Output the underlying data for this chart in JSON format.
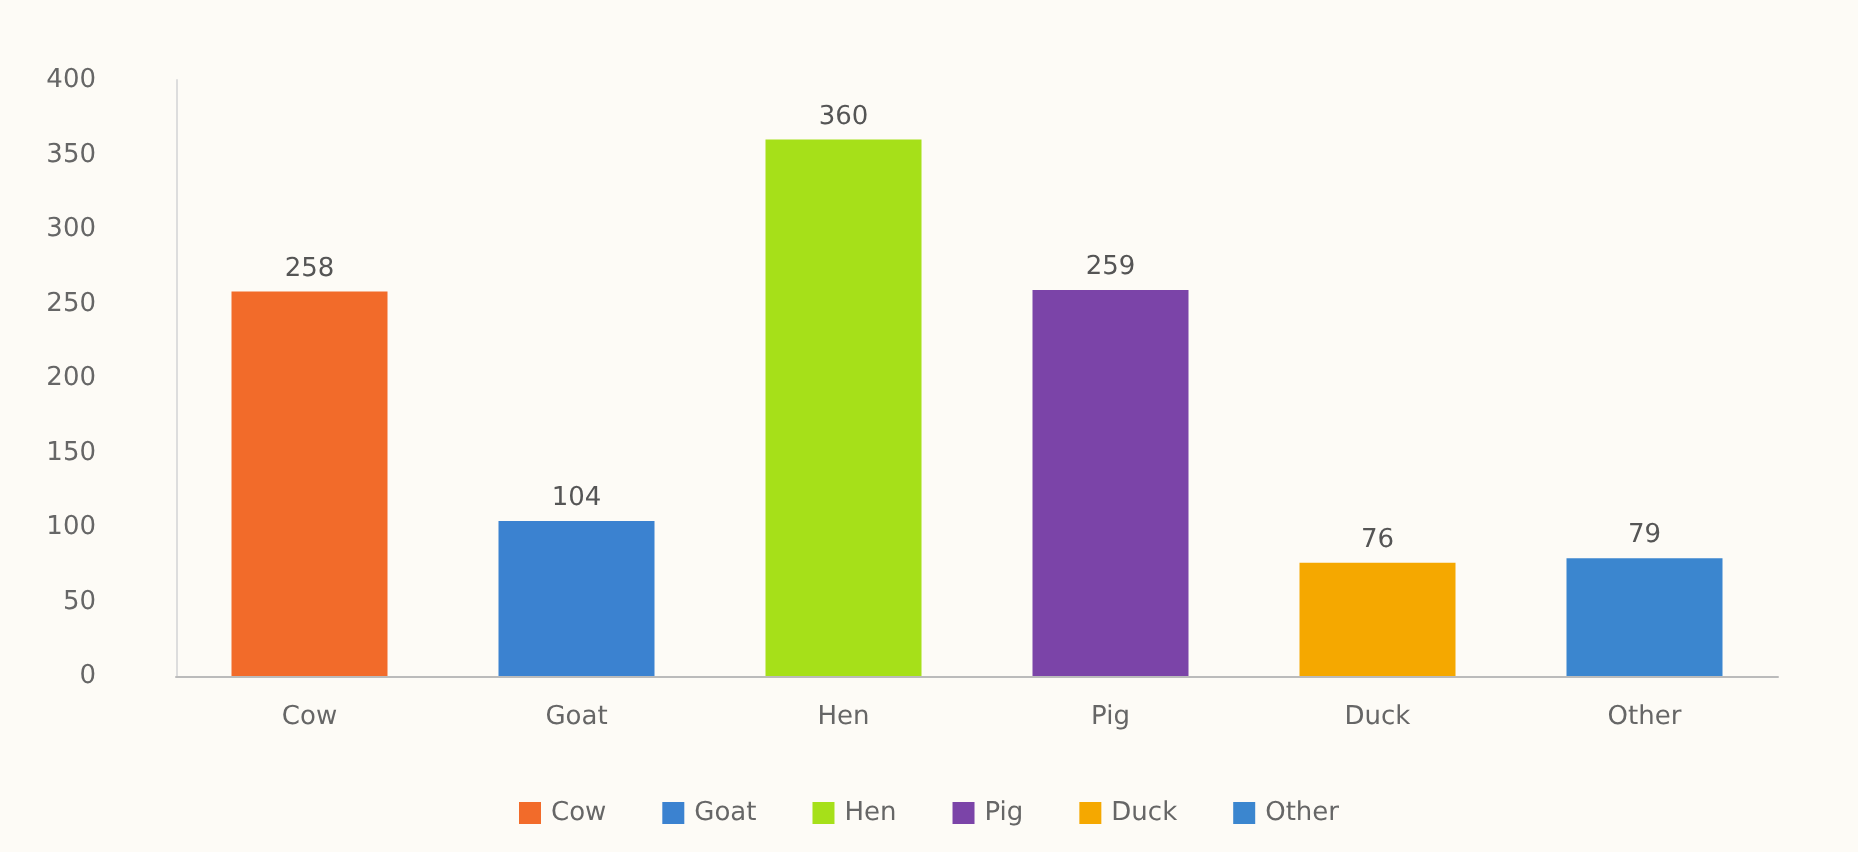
{
  "chart_data": {
    "type": "bar",
    "categories": [
      "Cow",
      "Goat",
      "Hen",
      "Pig",
      "Duck",
      "Other"
    ],
    "series": [
      {
        "name": "Cow",
        "color": "#f26b2a",
        "values": [
          258,
          null,
          null,
          null,
          null,
          null
        ]
      },
      {
        "name": "Goat",
        "color": "#3b82d0",
        "values": [
          null,
          104,
          null,
          null,
          null,
          null
        ]
      },
      {
        "name": "Hen",
        "color": "#a6e019",
        "values": [
          null,
          null,
          360,
          null,
          null,
          null
        ]
      },
      {
        "name": "Pig",
        "color": "#7b44a8",
        "values": [
          null,
          null,
          null,
          259,
          null,
          null
        ]
      },
      {
        "name": "Duck",
        "color": "#f5a800",
        "values": [
          null,
          null,
          null,
          null,
          76,
          null
        ]
      },
      {
        "name": "Other",
        "color": "#3b86cf",
        "values": [
          null,
          null,
          null,
          null,
          null,
          79
        ]
      }
    ],
    "ylim": [
      0,
      400
    ],
    "yticks": [
      0,
      50,
      100,
      150,
      200,
      250,
      300,
      350,
      400
    ],
    "data_labels": true,
    "legend": "bottom",
    "grid": false
  }
}
